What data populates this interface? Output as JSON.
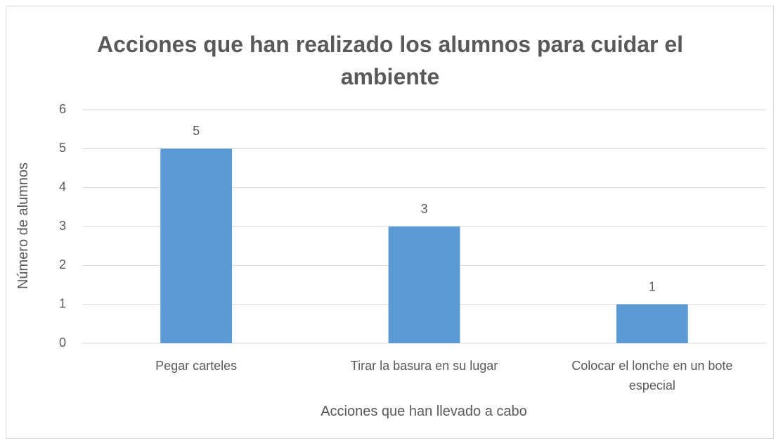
{
  "chart_data": {
    "type": "bar",
    "title": "Acciones que han realizado los alumnos para cuidar el ambiente",
    "categories": [
      "Pegar carteles",
      "Tirar la basura en su lugar",
      "Colocar el lonche en un bote especial"
    ],
    "values": [
      5,
      3,
      1
    ],
    "color": "#5b9bd5",
    "x_label": "Acciones que han llevado a cabo",
    "y_label": "Número de alumnos",
    "ylim": [
      0,
      6
    ],
    "yticks": [
      0,
      1,
      2,
      3,
      4,
      5,
      6
    ],
    "grid": true
  }
}
